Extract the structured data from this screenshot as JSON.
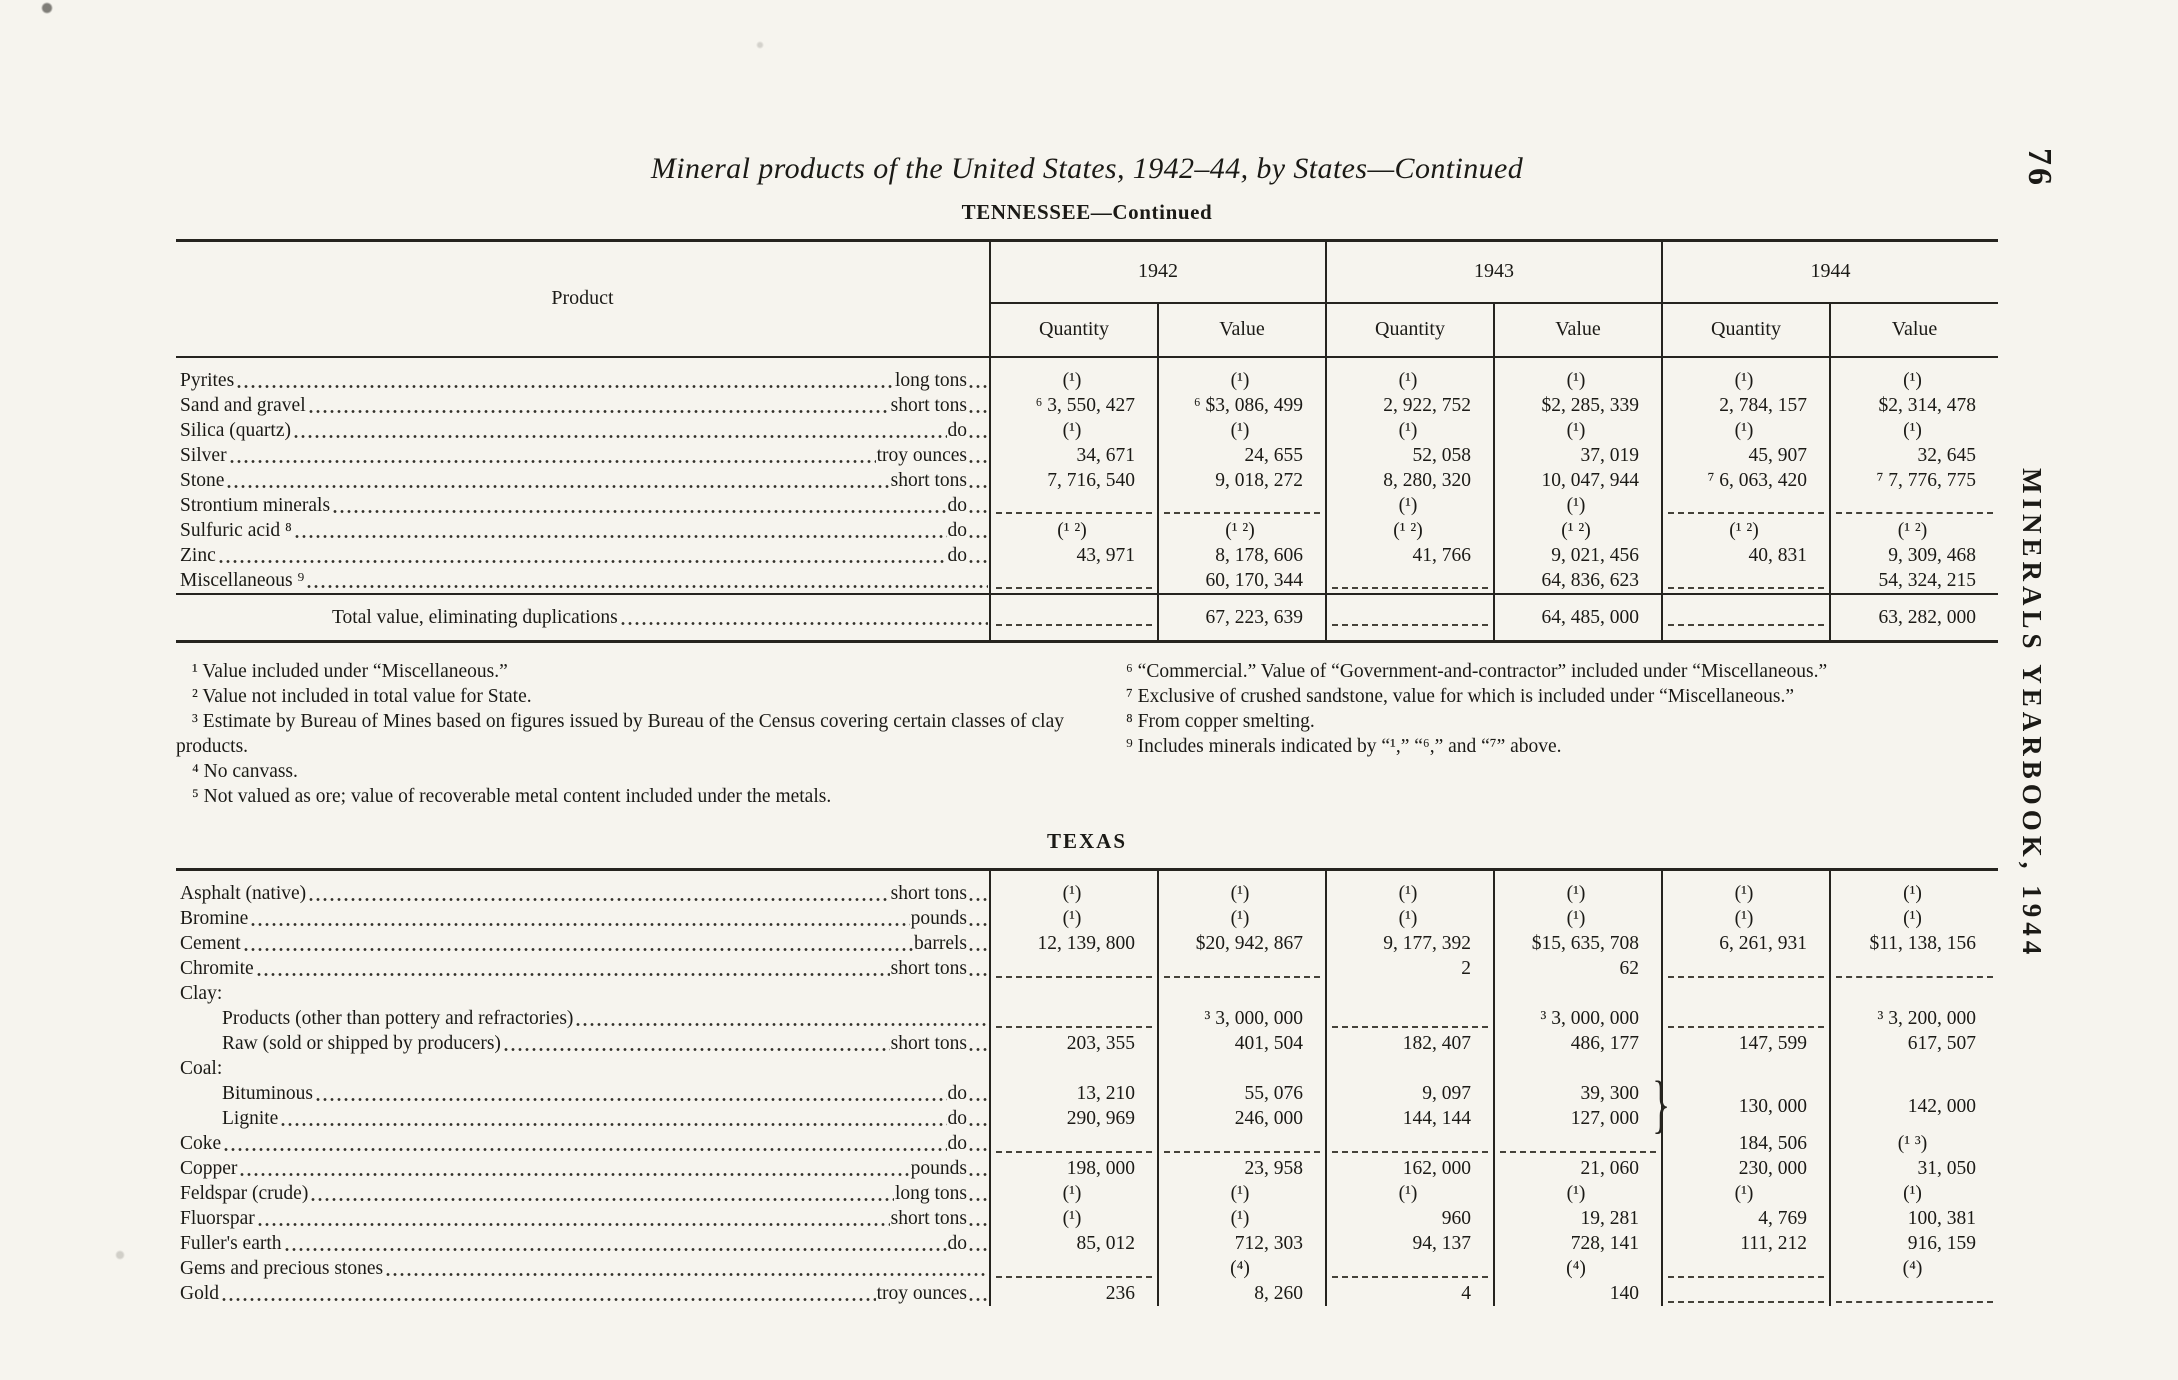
{
  "page": {
    "title": "Mineral products of the United States, 1942–44, by States—Continued",
    "page_number": "76",
    "spine_text": "MINERALS YEARBOOK, 1944"
  },
  "table_header": {
    "product": "Product",
    "years": [
      "1942",
      "1943",
      "1944"
    ],
    "measures": [
      "Quantity",
      "Value"
    ]
  },
  "tennessee": {
    "title": "TENNESSEE—Continued",
    "rows": [
      {
        "label": "Pyrites",
        "unit": "long tons",
        "cells": [
          "(¹)",
          "(¹)",
          "(¹)",
          "(¹)",
          "(¹)",
          "(¹)"
        ]
      },
      {
        "label": "Sand and gravel",
        "unit": "short tons",
        "cells": [
          "⁶ 3, 550, 427",
          "⁶ $3, 086, 499",
          "2, 922, 752",
          "$2, 285, 339",
          "2, 784, 157",
          "$2, 314, 478"
        ]
      },
      {
        "label": "Silica (quartz)",
        "unit": "do",
        "cells": [
          "(¹)",
          "(¹)",
          "(¹)",
          "(¹)",
          "(¹)",
          "(¹)"
        ]
      },
      {
        "label": "Silver",
        "unit": "troy ounces",
        "cells": [
          "34, 671",
          "24, 655",
          "52, 058",
          "37, 019",
          "45, 907",
          "32, 645"
        ]
      },
      {
        "label": "Stone",
        "unit": "short tons",
        "cells": [
          "7, 716, 540",
          "9, 018, 272",
          "8, 280, 320",
          "10, 047, 944",
          "⁷ 6, 063, 420",
          "⁷ 7, 776, 775"
        ]
      },
      {
        "label": "Strontium minerals",
        "unit": "do",
        "cells": [
          "",
          "",
          "(¹)",
          "(¹)",
          "",
          ""
        ]
      },
      {
        "label": "Sulfuric acid ⁸",
        "unit": "do",
        "cells": [
          "(¹ ²)",
          "(¹ ²)",
          "(¹ ²)",
          "(¹ ²)",
          "(¹ ²)",
          "(¹ ²)"
        ]
      },
      {
        "label": "Zinc",
        "unit": "do",
        "cells": [
          "43, 971",
          "8, 178, 606",
          "41, 766",
          "9, 021, 456",
          "40, 831",
          "9, 309, 468"
        ]
      },
      {
        "label": "Miscellaneous ⁹",
        "unit": "",
        "cells": [
          "",
          "60, 170, 344",
          "",
          "64, 836, 623",
          "",
          "54, 324, 215"
        ]
      },
      {
        "label": "Total value, eliminating duplications",
        "unit": "",
        "type": "total",
        "cells": [
          "",
          "67, 223, 639",
          "",
          "64, 485, 000",
          "",
          "63, 282, 000"
        ]
      }
    ]
  },
  "footnotes": {
    "left": [
      "¹ Value included under “Miscellaneous.”",
      "² Value not included in total value for State.",
      "³ Estimate by Bureau of Mines based on figures issued by Bureau of the Census covering certain classes of clay products.",
      "⁴ No canvass.",
      "⁵ Not valued as ore; value of recoverable metal content included under the metals."
    ],
    "right": [
      "⁶ “Commercial.”  Value of “Government-and-contractor” included under “Miscellaneous.”",
      "⁷ Exclusive of crushed sandstone, value for which is included under “Miscellaneous.”",
      "⁸ From copper smelting.",
      "⁹ Includes minerals indicated by “¹,” “⁶,” and “⁷” above."
    ]
  },
  "texas": {
    "title": "TEXAS",
    "rows": [
      {
        "label": "Asphalt (native)",
        "unit": "short tons",
        "cells": [
          "(¹)",
          "(¹)",
          "(¹)",
          "(¹)",
          "(¹)",
          "(¹)"
        ]
      },
      {
        "label": "Bromine",
        "unit": "pounds",
        "cells": [
          "(¹)",
          "(¹)",
          "(¹)",
          "(¹)",
          "(¹)",
          "(¹)"
        ]
      },
      {
        "label": "Cement",
        "unit": "barrels",
        "cells": [
          "12, 139, 800",
          "$20, 942, 867",
          "9, 177, 392",
          "$15, 635, 708",
          "6, 261, 931",
          "$11, 138, 156"
        ]
      },
      {
        "label": "Chromite",
        "unit": "short tons",
        "cells": [
          "",
          "",
          "2",
          "62",
          "",
          ""
        ]
      },
      {
        "label": "Clay:",
        "type": "group"
      },
      {
        "label": "Products (other than pottery and refractories)",
        "unit": "",
        "indent": 1,
        "cells": [
          "",
          "³ 3, 000, 000",
          "",
          "³ 3, 000, 000",
          "",
          "³ 3, 200, 000"
        ]
      },
      {
        "label": "Raw (sold or shipped by producers)",
        "unit": "short tons",
        "indent": 1,
        "cells": [
          "203, 355",
          "401, 504",
          "182, 407",
          "486, 177",
          "147, 599",
          "617, 507"
        ]
      },
      {
        "label": "Coal:",
        "type": "group"
      },
      {
        "label": "Bituminous",
        "unit": "do",
        "indent": 1,
        "merge44": true,
        "brace": "}",
        "cells": [
          "13, 210",
          "55, 076",
          "9, 097",
          "39, 300",
          "130, 000",
          "142, 000"
        ]
      },
      {
        "label": "Lignite",
        "unit": "do",
        "indent": 1,
        "short": true,
        "cells": [
          "290, 969",
          "246, 000",
          "144, 144",
          "127, 000"
        ]
      },
      {
        "label": "Coke",
        "unit": "do",
        "cells": [
          "",
          "",
          "",
          "",
          "184, 506",
          "(¹ ³)"
        ]
      },
      {
        "label": "Copper",
        "unit": "pounds",
        "cells": [
          "198, 000",
          "23, 958",
          "162, 000",
          "21, 060",
          "230, 000",
          "31, 050"
        ]
      },
      {
        "label": "Feldspar (crude)",
        "unit": "long tons",
        "cells": [
          "(¹)",
          "(¹)",
          "(¹)",
          "(¹)",
          "(¹)",
          "(¹)"
        ]
      },
      {
        "label": "Fluorspar",
        "unit": "short tons",
        "cells": [
          "(¹)",
          "(¹)",
          "960",
          "19, 281",
          "4, 769",
          "100, 381"
        ]
      },
      {
        "label": "Fuller's earth",
        "unit": "do",
        "cells": [
          "85, 012",
          "712, 303",
          "94, 137",
          "728, 141",
          "111, 212",
          "916, 159"
        ]
      },
      {
        "label": "Gems and precious stones",
        "unit": "",
        "cells": [
          "",
          "(⁴)",
          "",
          "(⁴)",
          "",
          "(⁴)"
        ]
      },
      {
        "label": "Gold",
        "unit": "troy ounces",
        "cells": [
          "236",
          "8, 260",
          "4",
          "140",
          "",
          ""
        ]
      }
    ]
  }
}
